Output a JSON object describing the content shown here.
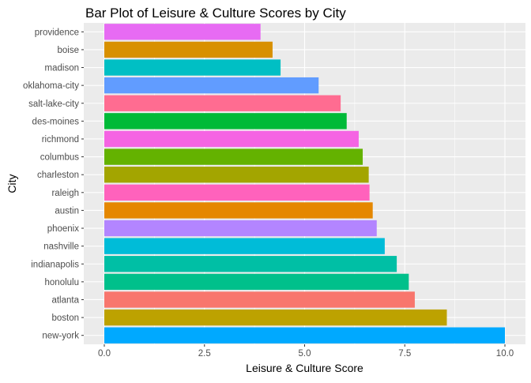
{
  "chart_data": {
    "type": "bar",
    "orientation": "horizontal",
    "title": "Bar Plot of Leisure & Culture Scores by City",
    "xlabel": "Leisure & Culture Score",
    "ylabel": "City",
    "xlim": [
      0,
      10
    ],
    "xticks": [
      0,
      2.5,
      5,
      7.5,
      10
    ],
    "xtick_labels": [
      "0.0",
      "2.5",
      "5.0",
      "7.5",
      "10.0"
    ],
    "grid": true,
    "legend": "none",
    "panel_background": "#EBEBEB",
    "grid_color": "#FFFFFF",
    "categories": [
      "providence",
      "boise",
      "madison",
      "oklahoma-city",
      "salt-lake-city",
      "des-moines",
      "richmond",
      "columbus",
      "charleston",
      "raleigh",
      "austin",
      "phoenix",
      "nashville",
      "indianapolis",
      "honolulu",
      "atlanta",
      "boston",
      "new-york"
    ],
    "values": [
      3.9,
      4.2,
      4.4,
      5.35,
      5.9,
      6.05,
      6.35,
      6.45,
      6.6,
      6.62,
      6.7,
      6.8,
      7.0,
      7.3,
      7.6,
      7.75,
      8.55,
      10.0
    ],
    "colors": [
      "#E76BF3",
      "#D89000",
      "#00BFC4",
      "#619CFF",
      "#FF6C91",
      "#00BA38",
      "#F564E3",
      "#64B200",
      "#A3A500",
      "#FF62BC",
      "#E58700",
      "#B385FF",
      "#00BCD8",
      "#00BFA5",
      "#00C08B",
      "#F8766D",
      "#BDA200",
      "#00A9FF"
    ]
  }
}
